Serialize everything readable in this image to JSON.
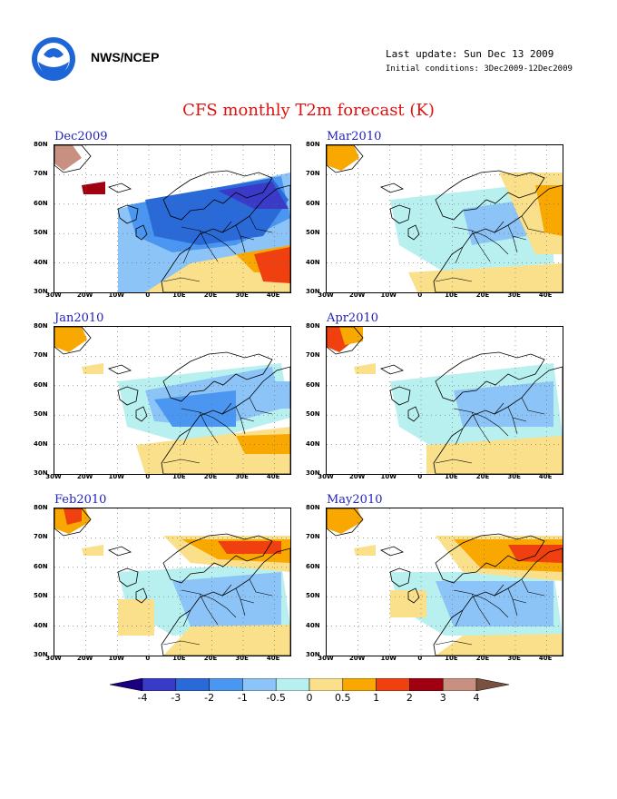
{
  "header": {
    "org": "NWS/NCEP",
    "last_update": "Last update: Sun Dec 13 2009",
    "initial_conditions": "Initial conditions: 3Dec2009-12Dec2009"
  },
  "title": "CFS monthly T2m forecast (K)",
  "axes": {
    "lat_labels": [
      "80N",
      "70N",
      "60N",
      "50N",
      "40N",
      "30N"
    ],
    "lon_labels": [
      "30W",
      "20W",
      "10W",
      "0",
      "10E",
      "20E",
      "30E",
      "40E"
    ]
  },
  "panels": [
    {
      "id": "dec2009",
      "label": "Dec2009",
      "theme": "cold"
    },
    {
      "id": "mar2010",
      "label": "Mar2010",
      "theme": "neutral"
    },
    {
      "id": "jan2010",
      "label": "Jan2010",
      "theme": "cool"
    },
    {
      "id": "apr2010",
      "label": "Apr2010",
      "theme": "mild"
    },
    {
      "id": "feb2010",
      "label": "Feb2010",
      "theme": "north-warm"
    },
    {
      "id": "may2010",
      "label": "May2010",
      "theme": "north-warm2"
    }
  ],
  "colorbar": {
    "labels": [
      "-4",
      "-3",
      "-2",
      "-1",
      "-0.5",
      "0",
      "0.5",
      "1",
      "2",
      "3",
      "4"
    ],
    "colors": [
      "#1a0080",
      "#3a3ac8",
      "#2a6ad8",
      "#4a96f0",
      "#8cc4f7",
      "#b8f0f0",
      "#fbe08c",
      "#f8a800",
      "#f04010",
      "#a00010",
      "#c89080",
      "#7a5040"
    ]
  }
}
